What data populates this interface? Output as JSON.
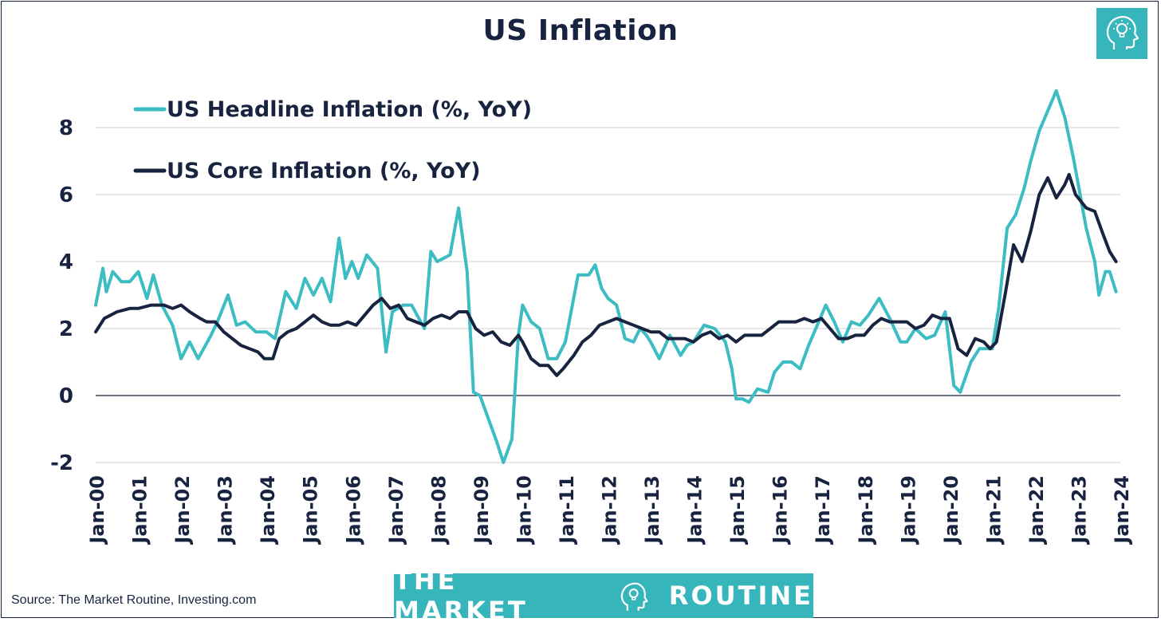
{
  "title": "US Inflation",
  "source_note": "Source: The Market Routine, Investing.com",
  "brand": {
    "left": "THE MARKET",
    "right": "ROUTINE",
    "icon": "head-lightbulb-icon"
  },
  "corner_logo_icon": "head-lightbulb-icon",
  "colors": {
    "headline": "#3cbcc3",
    "core": "#17233f",
    "brand": "#36b5bb",
    "text": "#17233f"
  },
  "chart_data": {
    "type": "line",
    "title": "US Inflation",
    "xlabel": "",
    "ylabel": "",
    "ylim": [
      -2,
      9.2
    ],
    "yticks": [
      -2,
      0,
      2,
      4,
      6,
      8
    ],
    "ytick_labels": [
      "-2",
      "0",
      "2",
      "4",
      "6",
      "8"
    ],
    "x_range": [
      2000.0,
      2024.0
    ],
    "xticks": [
      2000,
      2001,
      2002,
      2003,
      2004,
      2005,
      2006,
      2007,
      2008,
      2009,
      2010,
      2011,
      2012,
      2013,
      2014,
      2015,
      2016,
      2017,
      2018,
      2019,
      2020,
      2021,
      2022,
      2023,
      2024
    ],
    "xtick_labels": [
      "Jan-00",
      "Jan-01",
      "Jan-02",
      "Jan-03",
      "Jan-04",
      "Jan-05",
      "Jan-06",
      "Jan-07",
      "Jan-08",
      "Jan-09",
      "Jan-10",
      "Jan-11",
      "Jan-12",
      "Jan-13",
      "Jan-14",
      "Jan-15",
      "Jan-16",
      "Jan-17",
      "Jan-18",
      "Jan-19",
      "Jan-20",
      "Jan-21",
      "Jan-22",
      "Jan-23",
      "Jan-24"
    ],
    "grid": true,
    "legend_position": "top-left",
    "series": [
      {
        "name": "US Headline Inflation (%, YoY)",
        "color": "#3cbcc3",
        "points": [
          [
            2000.0,
            2.7
          ],
          [
            2000.17,
            3.8
          ],
          [
            2000.25,
            3.1
          ],
          [
            2000.4,
            3.7
          ],
          [
            2000.6,
            3.4
          ],
          [
            2000.8,
            3.4
          ],
          [
            2001.0,
            3.7
          ],
          [
            2001.2,
            2.9
          ],
          [
            2001.35,
            3.6
          ],
          [
            2001.55,
            2.7
          ],
          [
            2001.8,
            2.1
          ],
          [
            2002.0,
            1.1
          ],
          [
            2002.2,
            1.6
          ],
          [
            2002.4,
            1.1
          ],
          [
            2002.7,
            1.8
          ],
          [
            2002.85,
            2.2
          ],
          [
            2003.1,
            3.0
          ],
          [
            2003.3,
            2.1
          ],
          [
            2003.5,
            2.2
          ],
          [
            2003.75,
            1.9
          ],
          [
            2004.0,
            1.9
          ],
          [
            2004.2,
            1.7
          ],
          [
            2004.45,
            3.1
          ],
          [
            2004.7,
            2.6
          ],
          [
            2004.9,
            3.5
          ],
          [
            2005.1,
            3.0
          ],
          [
            2005.3,
            3.5
          ],
          [
            2005.5,
            2.8
          ],
          [
            2005.7,
            4.7
          ],
          [
            2005.85,
            3.5
          ],
          [
            2006.0,
            4.0
          ],
          [
            2006.15,
            3.5
          ],
          [
            2006.35,
            4.2
          ],
          [
            2006.6,
            3.8
          ],
          [
            2006.8,
            1.3
          ],
          [
            2006.95,
            2.5
          ],
          [
            2007.2,
            2.7
          ],
          [
            2007.4,
            2.7
          ],
          [
            2007.7,
            2.0
          ],
          [
            2007.85,
            4.3
          ],
          [
            2008.0,
            4.0
          ],
          [
            2008.3,
            4.2
          ],
          [
            2008.5,
            5.6
          ],
          [
            2008.7,
            3.7
          ],
          [
            2008.85,
            0.1
          ],
          [
            2009.0,
            0.0
          ],
          [
            2009.2,
            -0.7
          ],
          [
            2009.4,
            -1.4
          ],
          [
            2009.55,
            -2.0
          ],
          [
            2009.75,
            -1.3
          ],
          [
            2009.9,
            1.8
          ],
          [
            2010.0,
            2.7
          ],
          [
            2010.2,
            2.2
          ],
          [
            2010.4,
            2.0
          ],
          [
            2010.6,
            1.1
          ],
          [
            2010.8,
            1.1
          ],
          [
            2011.0,
            1.6
          ],
          [
            2011.3,
            3.6
          ],
          [
            2011.55,
            3.6
          ],
          [
            2011.7,
            3.9
          ],
          [
            2011.85,
            3.2
          ],
          [
            2012.0,
            2.9
          ],
          [
            2012.2,
            2.7
          ],
          [
            2012.4,
            1.7
          ],
          [
            2012.6,
            1.6
          ],
          [
            2012.75,
            2.0
          ],
          [
            2012.9,
            1.8
          ],
          [
            2013.0,
            1.6
          ],
          [
            2013.2,
            1.1
          ],
          [
            2013.45,
            1.8
          ],
          [
            2013.7,
            1.2
          ],
          [
            2013.85,
            1.5
          ],
          [
            2014.0,
            1.6
          ],
          [
            2014.25,
            2.1
          ],
          [
            2014.5,
            2.0
          ],
          [
            2014.75,
            1.6
          ],
          [
            2014.9,
            0.8
          ],
          [
            2015.0,
            -0.1
          ],
          [
            2015.15,
            -0.1
          ],
          [
            2015.3,
            -0.2
          ],
          [
            2015.5,
            0.2
          ],
          [
            2015.75,
            0.1
          ],
          [
            2015.9,
            0.7
          ],
          [
            2016.1,
            1.0
          ],
          [
            2016.3,
            1.0
          ],
          [
            2016.5,
            0.8
          ],
          [
            2016.7,
            1.5
          ],
          [
            2016.9,
            2.1
          ],
          [
            2017.1,
            2.7
          ],
          [
            2017.3,
            2.2
          ],
          [
            2017.5,
            1.6
          ],
          [
            2017.7,
            2.2
          ],
          [
            2017.9,
            2.1
          ],
          [
            2018.1,
            2.4
          ],
          [
            2018.35,
            2.9
          ],
          [
            2018.6,
            2.3
          ],
          [
            2018.85,
            1.6
          ],
          [
            2019.0,
            1.6
          ],
          [
            2019.2,
            2.0
          ],
          [
            2019.45,
            1.7
          ],
          [
            2019.65,
            1.8
          ],
          [
            2019.9,
            2.5
          ],
          [
            2020.1,
            0.3
          ],
          [
            2020.25,
            0.1
          ],
          [
            2020.5,
            1.0
          ],
          [
            2020.7,
            1.4
          ],
          [
            2020.9,
            1.4
          ],
          [
            2021.0,
            1.4
          ],
          [
            2021.15,
            2.6
          ],
          [
            2021.35,
            5.0
          ],
          [
            2021.55,
            5.4
          ],
          [
            2021.75,
            6.2
          ],
          [
            2021.9,
            7.0
          ],
          [
            2022.1,
            7.9
          ],
          [
            2022.3,
            8.5
          ],
          [
            2022.5,
            9.1
          ],
          [
            2022.7,
            8.3
          ],
          [
            2022.9,
            7.1
          ],
          [
            2023.0,
            6.4
          ],
          [
            2023.2,
            5.0
          ],
          [
            2023.4,
            4.0
          ],
          [
            2023.5,
            3.0
          ],
          [
            2023.65,
            3.7
          ],
          [
            2023.75,
            3.7
          ],
          [
            2023.9,
            3.1
          ]
        ]
      },
      {
        "name": "US Core Inflation (%, YoY)",
        "color": "#17233f",
        "points": [
          [
            2000.0,
            1.9
          ],
          [
            2000.2,
            2.3
          ],
          [
            2000.5,
            2.5
          ],
          [
            2000.8,
            2.6
          ],
          [
            2001.0,
            2.6
          ],
          [
            2001.3,
            2.7
          ],
          [
            2001.6,
            2.7
          ],
          [
            2001.8,
            2.6
          ],
          [
            2002.0,
            2.7
          ],
          [
            2002.2,
            2.5
          ],
          [
            2002.45,
            2.3
          ],
          [
            2002.6,
            2.2
          ],
          [
            2002.8,
            2.2
          ],
          [
            2003.0,
            1.9
          ],
          [
            2003.2,
            1.7
          ],
          [
            2003.4,
            1.5
          ],
          [
            2003.6,
            1.4
          ],
          [
            2003.8,
            1.3
          ],
          [
            2003.95,
            1.1
          ],
          [
            2004.15,
            1.1
          ],
          [
            2004.3,
            1.7
          ],
          [
            2004.5,
            1.9
          ],
          [
            2004.7,
            2.0
          ],
          [
            2004.9,
            2.2
          ],
          [
            2005.1,
            2.4
          ],
          [
            2005.3,
            2.2
          ],
          [
            2005.5,
            2.1
          ],
          [
            2005.7,
            2.1
          ],
          [
            2005.9,
            2.2
          ],
          [
            2006.1,
            2.1
          ],
          [
            2006.3,
            2.4
          ],
          [
            2006.5,
            2.7
          ],
          [
            2006.7,
            2.9
          ],
          [
            2006.9,
            2.6
          ],
          [
            2007.1,
            2.7
          ],
          [
            2007.3,
            2.3
          ],
          [
            2007.5,
            2.2
          ],
          [
            2007.7,
            2.1
          ],
          [
            2007.9,
            2.3
          ],
          [
            2008.1,
            2.4
          ],
          [
            2008.3,
            2.3
          ],
          [
            2008.5,
            2.5
          ],
          [
            2008.7,
            2.5
          ],
          [
            2008.9,
            2.0
          ],
          [
            2009.1,
            1.8
          ],
          [
            2009.3,
            1.9
          ],
          [
            2009.5,
            1.6
          ],
          [
            2009.7,
            1.5
          ],
          [
            2009.9,
            1.8
          ],
          [
            2010.0,
            1.6
          ],
          [
            2010.2,
            1.1
          ],
          [
            2010.4,
            0.9
          ],
          [
            2010.6,
            0.9
          ],
          [
            2010.8,
            0.6
          ],
          [
            2010.95,
            0.8
          ],
          [
            2011.2,
            1.2
          ],
          [
            2011.4,
            1.6
          ],
          [
            2011.6,
            1.8
          ],
          [
            2011.8,
            2.1
          ],
          [
            2012.0,
            2.2
          ],
          [
            2012.2,
            2.3
          ],
          [
            2012.4,
            2.2
          ],
          [
            2012.6,
            2.1
          ],
          [
            2012.8,
            2.0
          ],
          [
            2013.0,
            1.9
          ],
          [
            2013.2,
            1.9
          ],
          [
            2013.4,
            1.7
          ],
          [
            2013.6,
            1.7
          ],
          [
            2013.8,
            1.7
          ],
          [
            2014.0,
            1.6
          ],
          [
            2014.2,
            1.8
          ],
          [
            2014.4,
            1.9
          ],
          [
            2014.6,
            1.7
          ],
          [
            2014.8,
            1.8
          ],
          [
            2015.0,
            1.6
          ],
          [
            2015.2,
            1.8
          ],
          [
            2015.4,
            1.8
          ],
          [
            2015.6,
            1.8
          ],
          [
            2015.8,
            2.0
          ],
          [
            2016.0,
            2.2
          ],
          [
            2016.2,
            2.2
          ],
          [
            2016.4,
            2.2
          ],
          [
            2016.6,
            2.3
          ],
          [
            2016.8,
            2.2
          ],
          [
            2017.0,
            2.3
          ],
          [
            2017.2,
            2.0
          ],
          [
            2017.4,
            1.7
          ],
          [
            2017.6,
            1.7
          ],
          [
            2017.8,
            1.8
          ],
          [
            2018.0,
            1.8
          ],
          [
            2018.2,
            2.1
          ],
          [
            2018.4,
            2.3
          ],
          [
            2018.6,
            2.2
          ],
          [
            2018.8,
            2.2
          ],
          [
            2019.0,
            2.2
          ],
          [
            2019.2,
            2.0
          ],
          [
            2019.4,
            2.1
          ],
          [
            2019.6,
            2.4
          ],
          [
            2019.8,
            2.3
          ],
          [
            2020.0,
            2.3
          ],
          [
            2020.2,
            1.4
          ],
          [
            2020.4,
            1.2
          ],
          [
            2020.6,
            1.7
          ],
          [
            2020.8,
            1.6
          ],
          [
            2020.95,
            1.4
          ],
          [
            2021.1,
            1.6
          ],
          [
            2021.3,
            3.0
          ],
          [
            2021.5,
            4.5
          ],
          [
            2021.7,
            4.0
          ],
          [
            2021.9,
            4.9
          ],
          [
            2022.1,
            6.0
          ],
          [
            2022.3,
            6.5
          ],
          [
            2022.5,
            5.9
          ],
          [
            2022.7,
            6.3
          ],
          [
            2022.8,
            6.6
          ],
          [
            2022.95,
            6.0
          ],
          [
            2023.2,
            5.6
          ],
          [
            2023.4,
            5.5
          ],
          [
            2023.6,
            4.8
          ],
          [
            2023.75,
            4.3
          ],
          [
            2023.9,
            4.0
          ]
        ]
      }
    ]
  }
}
